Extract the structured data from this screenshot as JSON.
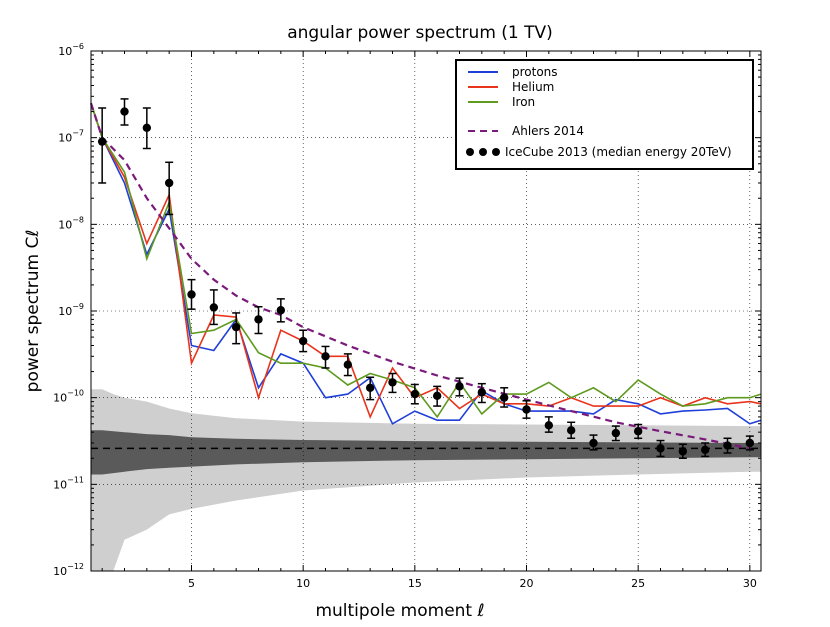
{
  "chart_data": {
    "type": "line",
    "title": "angular power spectrum (1 TV)",
    "xlabel": "multipole moment ℓ",
    "ylabel": "power spectrum Cℓ",
    "yscale": "log",
    "xlim": [
      0.5,
      30.5
    ],
    "ylim": [
      1e-12,
      1e-06
    ],
    "x_ticks": [
      5,
      10,
      15,
      20,
      25,
      30
    ],
    "y_ticks": [
      {
        "value": 1e-12,
        "base": "10",
        "exp": "−12"
      },
      {
        "value": 1e-11,
        "base": "10",
        "exp": "−11"
      },
      {
        "value": 1e-10,
        "base": "10",
        "exp": "−10"
      },
      {
        "value": 1e-09,
        "base": "10",
        "exp": "−9"
      },
      {
        "value": 1e-08,
        "base": "10",
        "exp": "−8"
      },
      {
        "value": 1e-07,
        "base": "10",
        "exp": "−7"
      },
      {
        "value": 1e-06,
        "base": "10",
        "exp": "−6"
      }
    ],
    "grid": true,
    "legend_position": "top-right",
    "series": [
      {
        "name": "protons",
        "style": "line",
        "color": "#1f3fd8",
        "x": [
          0.5,
          1,
          2,
          3,
          4,
          5,
          6,
          7,
          8,
          9,
          10,
          11,
          12,
          13,
          14,
          15,
          16,
          17,
          18,
          19,
          20,
          21,
          22,
          23,
          24,
          25,
          26,
          27,
          28,
          29,
          30,
          30.5
        ],
        "values": [
          2.5e-07,
          1e-07,
          3e-08,
          4.5e-09,
          1.5e-08,
          4e-10,
          3.5e-10,
          8e-10,
          1.3e-10,
          3.2e-10,
          2.5e-10,
          1e-10,
          1.1e-10,
          1.7e-10,
          5e-11,
          7e-11,
          5.5e-11,
          5.5e-11,
          1.2e-10,
          8.5e-11,
          7e-11,
          7e-11,
          7e-11,
          6.5e-11,
          9.5e-11,
          8.5e-11,
          6.5e-11,
          7e-11,
          7.2e-11,
          7.5e-11,
          5e-11,
          5.5e-11
        ]
      },
      {
        "name": "Helium",
        "style": "line",
        "color": "#e8341c",
        "x": [
          0.5,
          1,
          2,
          3,
          4,
          5,
          6,
          7,
          8,
          9,
          10,
          11,
          12,
          13,
          14,
          15,
          16,
          17,
          18,
          19,
          20,
          21,
          22,
          23,
          24,
          25,
          26,
          27,
          28,
          29,
          30,
          30.5
        ],
        "values": [
          2.5e-07,
          1e-07,
          3.5e-08,
          6e-09,
          2.2e-08,
          2.5e-10,
          9e-10,
          8.5e-10,
          1e-10,
          6e-10,
          4.5e-10,
          3e-10,
          3e-10,
          6e-11,
          2.2e-10,
          1e-10,
          1.3e-10,
          7.5e-11,
          1.1e-10,
          8.5e-11,
          8.5e-11,
          8e-11,
          1e-10,
          8e-11,
          8e-11,
          8e-11,
          1e-10,
          8e-11,
          1e-10,
          8.5e-11,
          9e-11,
          8.5e-11
        ]
      },
      {
        "name": "Iron",
        "style": "line",
        "color": "#5e9a1e",
        "x": [
          0.5,
          1,
          2,
          3,
          4,
          5,
          6,
          7,
          8,
          9,
          10,
          11,
          12,
          13,
          14,
          15,
          16,
          17,
          18,
          19,
          20,
          21,
          22,
          23,
          24,
          25,
          26,
          27,
          28,
          29,
          30,
          30.5
        ],
        "values": [
          2.5e-07,
          1e-07,
          4e-08,
          4e-09,
          1.8e-08,
          5.5e-10,
          6e-10,
          8e-10,
          3.3e-10,
          2.5e-10,
          2.5e-10,
          2.2e-10,
          1.4e-10,
          1.9e-10,
          1.6e-10,
          1.3e-10,
          6e-11,
          1.5e-10,
          6.5e-11,
          1.1e-10,
          1.1e-10,
          1.5e-10,
          1e-10,
          1.3e-10,
          9e-11,
          1.6e-10,
          1.1e-10,
          8e-11,
          8.5e-11,
          1e-10,
          1e-10,
          1.1e-10
        ]
      },
      {
        "name": "Ahlers 2014",
        "style": "dashed",
        "color": "#7a1a7a",
        "x": [
          0.5,
          1,
          2,
          3,
          4,
          5,
          6,
          7,
          8,
          9,
          10,
          12,
          14,
          16,
          18,
          20,
          22,
          24,
          26,
          28,
          30
        ],
        "values": [
          2.5e-07,
          1e-07,
          5.5e-08,
          2e-08,
          9e-09,
          4e-09,
          2.3e-09,
          1.5e-09,
          1.1e-09,
          9e-10,
          6.5e-10,
          4e-10,
          2.6e-10,
          1.8e-10,
          1.3e-10,
          9.5e-11,
          7e-11,
          5.2e-11,
          4.1e-11,
          3.3e-11,
          2.6e-11
        ]
      },
      {
        "name": "IceCube 2013 (median energy 20TeV)",
        "style": "errorbar",
        "color": "#000000",
        "x": [
          1,
          2,
          3,
          4,
          5,
          6,
          7,
          8,
          9,
          10,
          11,
          12,
          13,
          14,
          15,
          16,
          17,
          18,
          19,
          20,
          21,
          22,
          23,
          24,
          25,
          26,
          27,
          28,
          29,
          30
        ],
        "values": [
          9e-08,
          2e-07,
          1.3e-07,
          3e-08,
          1.55e-09,
          1.1e-09,
          6.5e-10,
          8e-10,
          1.02e-09,
          4.5e-10,
          3e-10,
          2.4e-10,
          1.3e-10,
          1.5e-10,
          1.1e-10,
          1.05e-10,
          1.35e-10,
          1.15e-10,
          1e-10,
          7.3e-11,
          4.8e-11,
          4.2e-11,
          3e-11,
          3.9e-11,
          4.1e-11,
          2.6e-11,
          2.4e-11,
          2.5e-11,
          2.8e-11,
          3e-11
        ],
        "err_low": [
          3e-08,
          1.4e-07,
          7.5e-08,
          1.3e-08,
          1.05e-09,
          7e-10,
          4.2e-10,
          5.5e-10,
          7.5e-10,
          3.4e-10,
          2.2e-10,
          1.8e-10,
          9.5e-11,
          1.15e-10,
          8.5e-11,
          8e-11,
          1.05e-10,
          8.8e-11,
          7.8e-11,
          5.8e-11,
          4e-11,
          3.4e-11,
          2.5e-11,
          3.2e-11,
          3.4e-11,
          2.1e-11,
          2e-11,
          2.1e-11,
          2.3e-11,
          2.5e-11
        ],
        "err_high": [
          2.2e-07,
          2.8e-07,
          2.2e-07,
          5.2e-08,
          2.3e-09,
          1.75e-09,
          9.5e-10,
          1.12e-09,
          1.38e-09,
          6e-10,
          3.9e-10,
          3.2e-10,
          1.72e-10,
          1.9e-10,
          1.42e-10,
          1.35e-10,
          1.68e-10,
          1.45e-10,
          1.3e-10,
          9.2e-11,
          6e-11,
          5.2e-11,
          3.7e-11,
          4.7e-11,
          4.9e-11,
          3.2e-11,
          2.9e-11,
          3e-11,
          3.4e-11,
          3.6e-11
        ]
      }
    ],
    "bands": [
      {
        "name": "isotropic-band-outer",
        "color": "#cfcfcf",
        "x": [
          0.5,
          1,
          1.5,
          2,
          3,
          4,
          5,
          7,
          10,
          15,
          20,
          25,
          30,
          30.5
        ],
        "low": [
          1e-12,
          1e-12,
          1e-12,
          2.3e-12,
          3e-12,
          4.5e-12,
          5.2e-12,
          6.5e-12,
          8.5e-12,
          1.05e-11,
          1.2e-11,
          1.3e-11,
          1.4e-11,
          1.4e-11
        ],
        "high": [
          1.25e-10,
          1.25e-10,
          1.1e-10,
          1e-10,
          9e-11,
          7.5e-11,
          6.6e-11,
          5.8e-11,
          5.3e-11,
          5e-11,
          4.9e-11,
          4.8e-11,
          4.7e-11,
          4.7e-11
        ]
      },
      {
        "name": "isotropic-band-inner",
        "color": "#5a5a5a",
        "x": [
          0.5,
          1,
          2,
          3,
          4,
          5,
          7,
          10,
          15,
          20,
          25,
          30,
          30.5
        ],
        "low": [
          1.3e-11,
          1.3e-11,
          1.4e-11,
          1.5e-11,
          1.55e-11,
          1.6e-11,
          1.7e-11,
          1.8e-11,
          1.9e-11,
          1.95e-11,
          2e-11,
          2.05e-11,
          2.05e-11
        ],
        "high": [
          4.2e-11,
          4.2e-11,
          4e-11,
          3.8e-11,
          3.7e-11,
          3.5e-11,
          3.35e-11,
          3.25e-11,
          3.15e-11,
          3.1e-11,
          3.05e-11,
          3e-11,
          3e-11
        ]
      }
    ],
    "reference_line": {
      "name": "isotropic-mean",
      "style": "dashed",
      "color": "#000000",
      "value": 2.6e-11
    }
  }
}
